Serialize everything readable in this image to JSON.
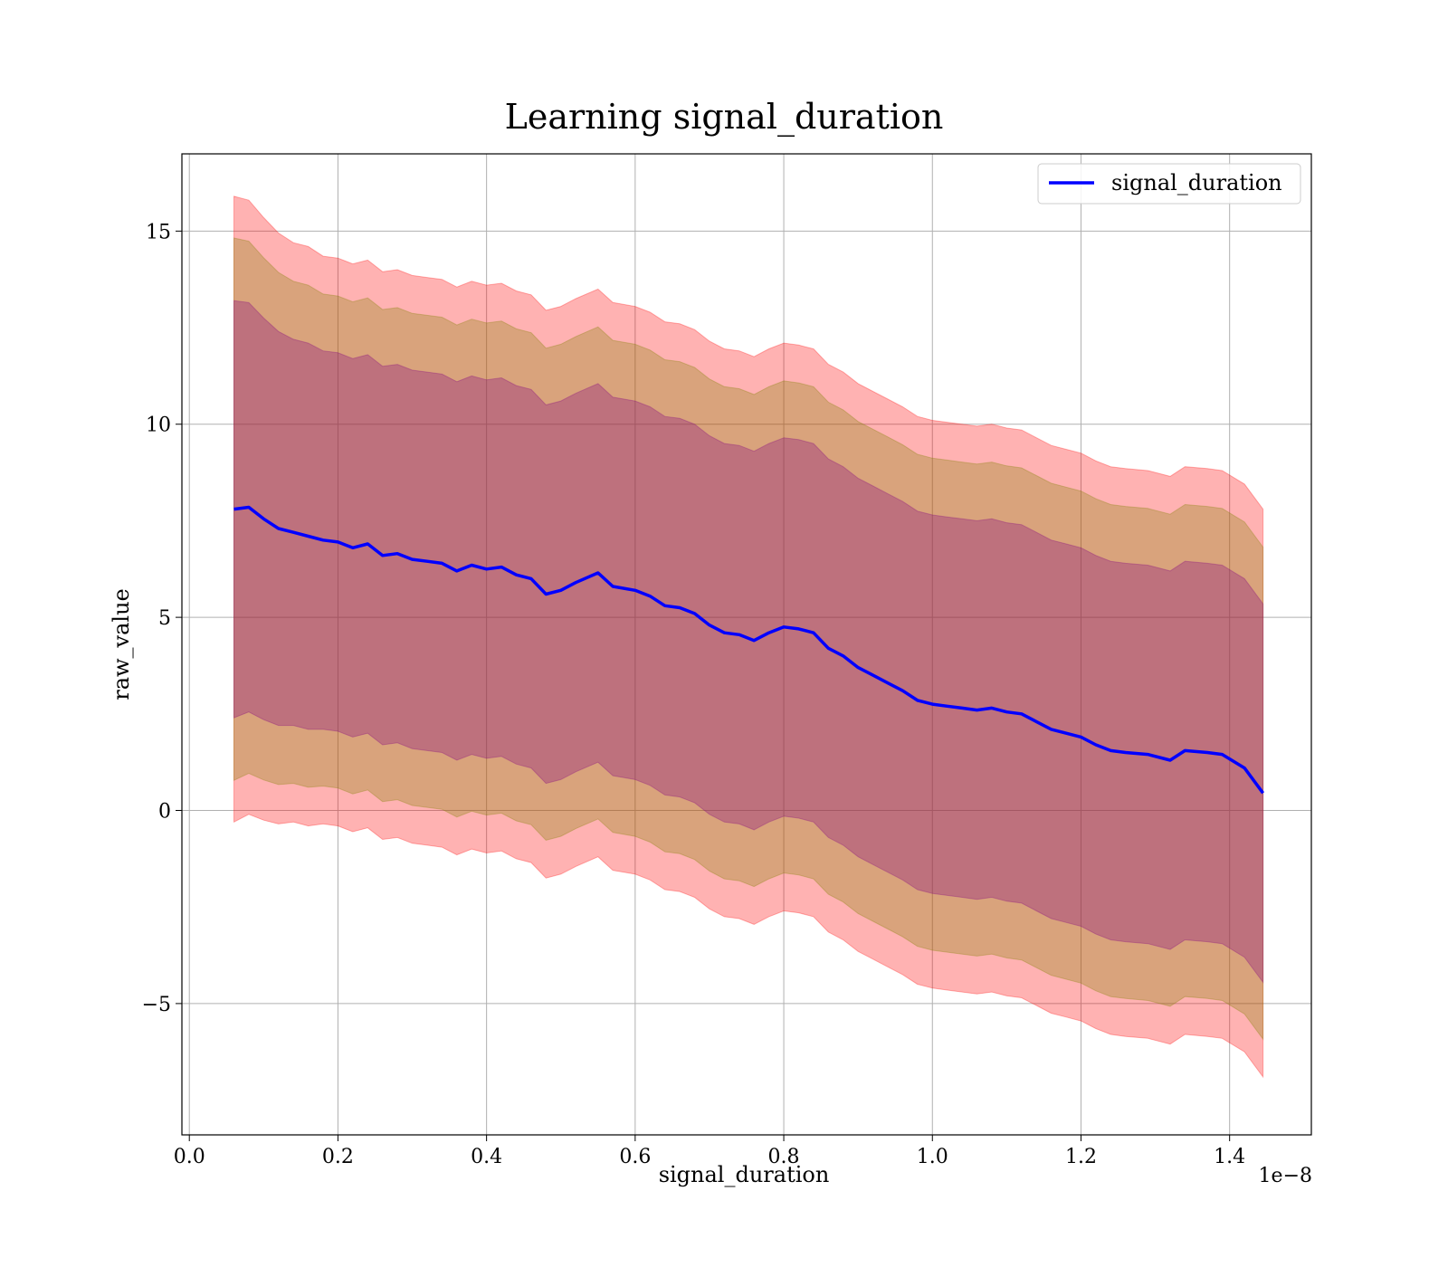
{
  "chart_data": {
    "type": "line",
    "title": "Learning signal_duration",
    "xlabel": "signal_duration",
    "ylabel": "raw_value",
    "x_offset_label": "1e−8",
    "xlim": [
      -0.01,
      1.51
    ],
    "ylim": [
      -8.4,
      17.0
    ],
    "grid": true,
    "legend_position": "top-right",
    "x_ticks": [
      0.0,
      0.2,
      0.4,
      0.6,
      0.8,
      1.0,
      1.2,
      1.4
    ],
    "x_tick_labels": [
      "0.0",
      "0.2",
      "0.4",
      "0.6",
      "0.8",
      "1.0",
      "1.2",
      "1.4"
    ],
    "y_ticks": [
      -5,
      0,
      5,
      10,
      15
    ],
    "y_tick_labels": [
      "−5",
      "0",
      "5",
      "10",
      "15"
    ],
    "series": [
      {
        "name": "signal_duration",
        "color": "#0000ff",
        "x": [
          0.06,
          0.08,
          0.1,
          0.12,
          0.14,
          0.16,
          0.18,
          0.2,
          0.22,
          0.24,
          0.26,
          0.28,
          0.3,
          0.32,
          0.34,
          0.36,
          0.38,
          0.4,
          0.42,
          0.44,
          0.46,
          0.48,
          0.5,
          0.52,
          0.55,
          0.57,
          0.6,
          0.62,
          0.64,
          0.66,
          0.68,
          0.7,
          0.72,
          0.74,
          0.76,
          0.78,
          0.8,
          0.82,
          0.84,
          0.86,
          0.88,
          0.9,
          0.92,
          0.94,
          0.96,
          0.98,
          1.0,
          1.02,
          1.04,
          1.06,
          1.08,
          1.1,
          1.12,
          1.14,
          1.16,
          1.18,
          1.2,
          1.22,
          1.24,
          1.26,
          1.29,
          1.32,
          1.34,
          1.37,
          1.39,
          1.42,
          1.445
        ],
        "values": [
          7.8,
          7.85,
          7.55,
          7.3,
          7.2,
          7.1,
          7.0,
          6.95,
          6.8,
          6.9,
          6.6,
          6.65,
          6.5,
          6.45,
          6.4,
          6.2,
          6.35,
          6.25,
          6.3,
          6.1,
          6.0,
          5.6,
          5.7,
          5.9,
          6.15,
          5.8,
          5.7,
          5.55,
          5.3,
          5.25,
          5.1,
          4.8,
          4.6,
          4.55,
          4.4,
          4.6,
          4.75,
          4.7,
          4.6,
          4.2,
          4.0,
          3.7,
          3.5,
          3.3,
          3.1,
          2.85,
          2.75,
          2.7,
          2.65,
          2.6,
          2.65,
          2.55,
          2.5,
          2.3,
          2.1,
          2.0,
          1.9,
          1.7,
          1.55,
          1.5,
          1.45,
          1.3,
          1.55,
          1.5,
          1.45,
          1.1,
          0.45
        ]
      }
    ],
    "bands": [
      {
        "color": "#ff0000",
        "alpha": 0.3,
        "sigma_multiple": 3
      },
      {
        "color": "#808000",
        "alpha": 0.3,
        "sigma_multiple": 2.6
      },
      {
        "color": "#800080",
        "alpha": 0.3,
        "sigma_multiple": 2.0
      }
    ],
    "band_base_sigma": [
      2.7,
      2.65,
      2.6,
      2.55,
      2.5,
      2.5,
      2.45,
      2.45,
      2.45,
      2.45,
      2.45,
      2.45,
      2.45,
      2.45,
      2.45,
      2.45,
      2.45,
      2.45,
      2.45,
      2.45,
      2.45,
      2.45,
      2.45,
      2.45,
      2.45,
      2.45,
      2.45,
      2.45,
      2.45,
      2.45,
      2.45,
      2.45,
      2.45,
      2.45,
      2.45,
      2.45,
      2.45,
      2.45,
      2.45,
      2.45,
      2.45,
      2.45,
      2.45,
      2.45,
      2.45,
      2.45,
      2.45,
      2.45,
      2.45,
      2.45,
      2.45,
      2.45,
      2.45,
      2.45,
      2.45,
      2.45,
      2.45,
      2.45,
      2.45,
      2.45,
      2.45,
      2.45,
      2.45,
      2.45,
      2.45,
      2.45,
      2.45
    ]
  }
}
